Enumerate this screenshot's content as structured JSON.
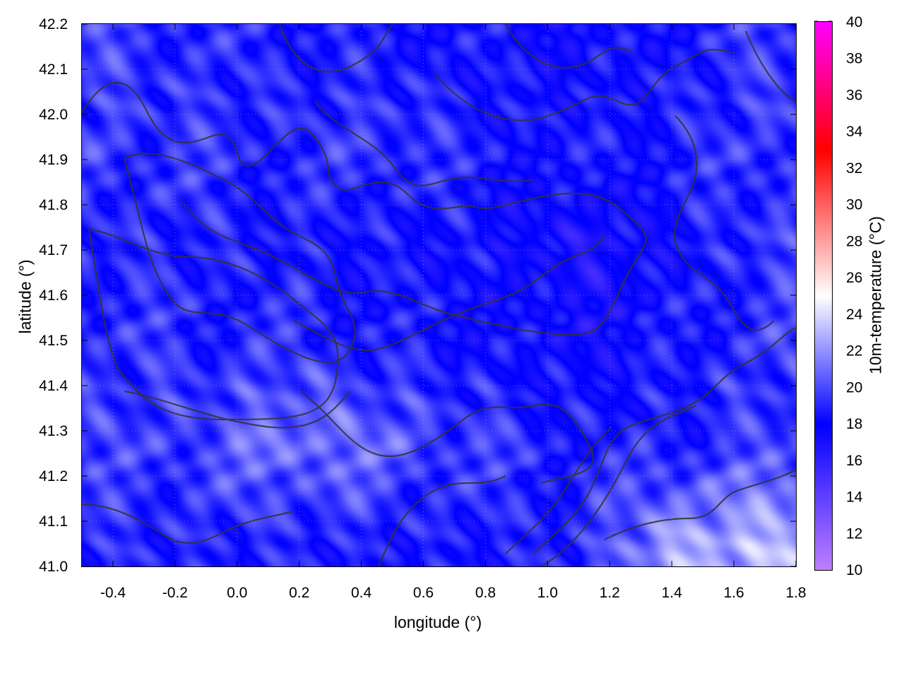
{
  "chart_data": {
    "type": "heatmap",
    "xlabel": "longitude (°)",
    "ylabel": "latitude (°)",
    "colorbar_label": "10m-temperature (°C)",
    "xlim": [
      -0.5,
      1.8
    ],
    "ylim": [
      41.0,
      42.2
    ],
    "clim": [
      10,
      40
    ],
    "xticks": [
      "-0.4",
      "-0.2",
      "0.0",
      "0.2",
      "0.4",
      "0.6",
      "0.8",
      "1.0",
      "1.2",
      "1.4",
      "1.6",
      "1.8"
    ],
    "yticks": [
      "41.0",
      "41.1",
      "41.2",
      "41.3",
      "41.4",
      "41.5",
      "41.6",
      "41.7",
      "41.8",
      "41.9",
      "42.0",
      "42.1",
      "42.2"
    ],
    "cticks": [
      "10",
      "12",
      "14",
      "16",
      "18",
      "20",
      "22",
      "24",
      "26",
      "28",
      "30",
      "32",
      "34",
      "36",
      "38",
      "40"
    ],
    "colormap": [
      {
        "value": 10,
        "color": "#c080ff"
      },
      {
        "value": 18,
        "color": "#0000ff"
      },
      {
        "value": 25,
        "color": "#ffffff"
      },
      {
        "value": 33,
        "color": "#ff0000"
      },
      {
        "value": 40,
        "color": "#ff00ff"
      }
    ],
    "grid": true,
    "contours": true,
    "grid_lon": [
      -0.4,
      -0.1,
      0.2,
      0.5,
      0.8,
      1.1,
      1.4,
      1.7
    ],
    "grid_lat": [
      42.15,
      41.93,
      41.71,
      41.49,
      41.27,
      41.05
    ],
    "values": [
      [
        19.5,
        19.0,
        18.8,
        18.5,
        18.3,
        17.8,
        18.5,
        19.5
      ],
      [
        19.5,
        19.3,
        19.0,
        19.8,
        18.5,
        18.5,
        18.8,
        19.5
      ],
      [
        19.0,
        18.8,
        18.5,
        18.3,
        18.2,
        16.8,
        18.0,
        19.5
      ],
      [
        19.3,
        19.0,
        19.2,
        18.5,
        18.3,
        17.5,
        18.5,
        19.5
      ],
      [
        19.5,
        20.0,
        21.5,
        20.5,
        19.5,
        18.8,
        18.8,
        19.5
      ],
      [
        19.0,
        18.8,
        18.8,
        18.5,
        18.5,
        19.0,
        22.5,
        23.0
      ]
    ]
  }
}
